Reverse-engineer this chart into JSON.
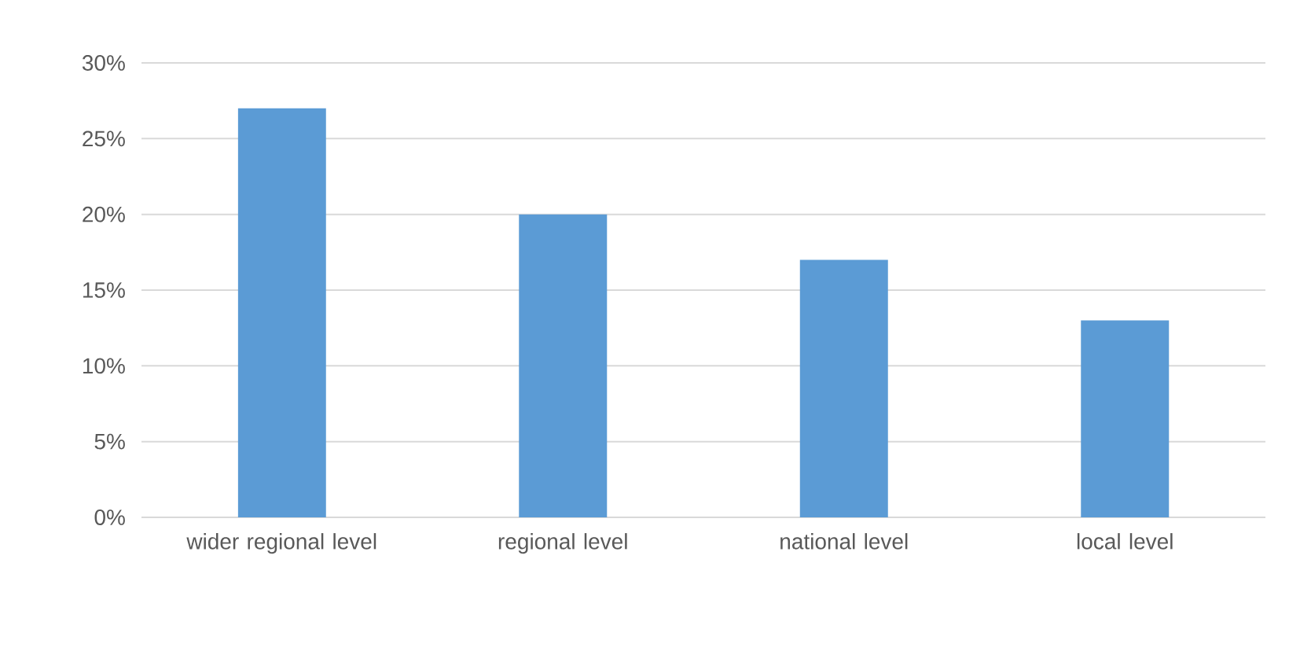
{
  "chart_data": {
    "type": "bar",
    "categories": [
      "wider regional level",
      "regional level",
      "national level",
      "local level"
    ],
    "values": [
      27,
      20,
      17,
      13
    ],
    "color": "#5b9bd5",
    "ylim": [
      0,
      30
    ],
    "yticks": [
      {
        "value": 0,
        "label": "0%"
      },
      {
        "value": 5,
        "label": "5%"
      },
      {
        "value": 10,
        "label": "10%"
      },
      {
        "value": 15,
        "label": "15%"
      },
      {
        "value": 20,
        "label": "20%"
      },
      {
        "value": 25,
        "label": "25%"
      },
      {
        "value": 30,
        "label": "30%"
      }
    ],
    "grid": "y"
  }
}
